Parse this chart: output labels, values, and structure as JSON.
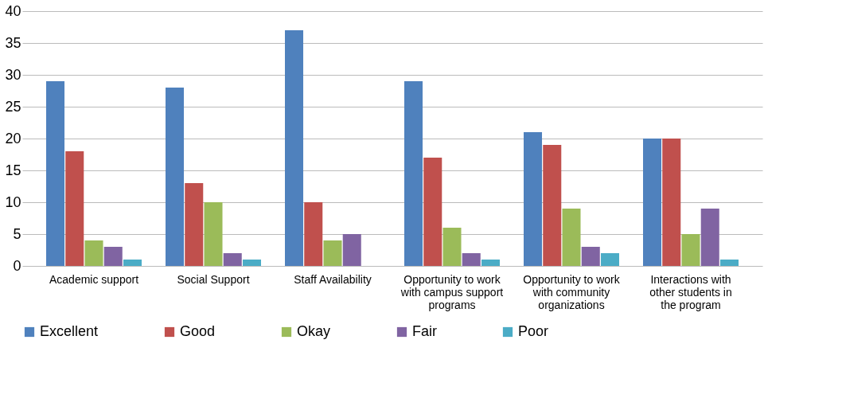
{
  "chart_data": {
    "type": "bar",
    "categories": [
      "Academic support",
      "Social Support",
      "Staff Availability",
      "Opportunity to work with campus support programs",
      "Opportunity to work with community organizations",
      "Interactions with other students in the program"
    ],
    "series": [
      {
        "name": "Excellent",
        "color": "#4f81bd",
        "values": [
          29,
          28,
          37,
          29,
          21,
          20
        ]
      },
      {
        "name": "Good",
        "color": "#c0504d",
        "values": [
          18,
          13,
          10,
          17,
          19,
          20
        ]
      },
      {
        "name": "Okay",
        "color": "#9bbb59",
        "values": [
          4,
          10,
          4,
          6,
          9,
          5
        ]
      },
      {
        "name": "Fair",
        "color": "#8064a2",
        "values": [
          3,
          2,
          5,
          2,
          3,
          9
        ]
      },
      {
        "name": "Poor",
        "color": "#4bacc6",
        "values": [
          1,
          1,
          0,
          1,
          2,
          1
        ]
      }
    ],
    "ylim": [
      0,
      40
    ],
    "yticks": [
      0,
      5,
      10,
      15,
      20,
      25,
      30,
      35,
      40
    ],
    "grid": "y",
    "legend": "bottom"
  }
}
